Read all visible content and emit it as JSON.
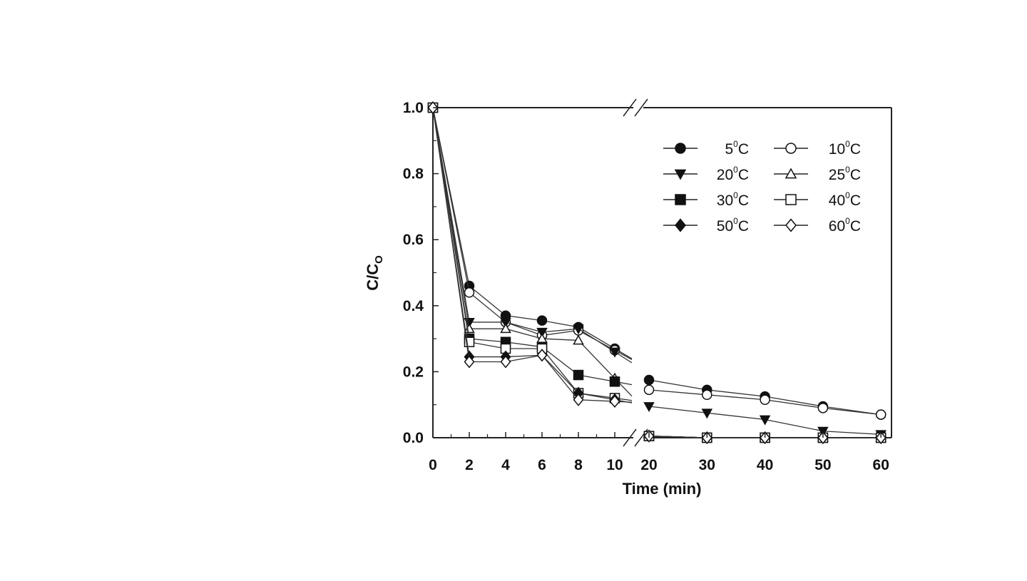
{
  "chart_data": {
    "type": "line",
    "title": "",
    "xlabel": "Time (min)",
    "ylabel": "C/C",
    "ylabel_subscript": "O",
    "ylim": [
      0,
      1.0
    ],
    "y_ticks": [
      "0.0",
      "0.2",
      "0.4",
      "0.6",
      "0.8",
      "1.0"
    ],
    "x_ticks": [
      "0",
      "2",
      "4",
      "6",
      "8",
      "10",
      "20",
      "30",
      "40",
      "50",
      "60"
    ],
    "x_axis_break": "between 10 and 20",
    "grid": false,
    "legend_position": "top-right",
    "series": [
      {
        "name": "5",
        "unit": "C",
        "marker": "circle",
        "filled": true,
        "x": [
          0,
          2,
          4,
          6,
          8,
          10,
          20,
          30,
          40,
          50,
          60
        ],
        "y": [
          1.0,
          0.46,
          0.37,
          0.355,
          0.335,
          0.27,
          0.175,
          0.145,
          0.125,
          0.095,
          0.07
        ]
      },
      {
        "name": "10",
        "unit": "C",
        "marker": "circle",
        "filled": false,
        "x": [
          0,
          2,
          4,
          6,
          8,
          10,
          20,
          30,
          40,
          50,
          60
        ],
        "y": [
          1.0,
          0.44,
          0.35,
          0.31,
          0.325,
          0.265,
          0.145,
          0.13,
          0.115,
          0.09,
          0.07
        ]
      },
      {
        "name": "20",
        "unit": "C",
        "marker": "triangle-down",
        "filled": true,
        "x": [
          0,
          2,
          4,
          6,
          8,
          10,
          20,
          30,
          40,
          50,
          60
        ],
        "y": [
          1.0,
          0.35,
          0.35,
          0.32,
          0.33,
          0.26,
          0.095,
          0.075,
          0.055,
          0.02,
          0.01
        ]
      },
      {
        "name": "25",
        "unit": "C",
        "marker": "triangle-up",
        "filled": false,
        "x": [
          0,
          2,
          4,
          6,
          8,
          10,
          20,
          30,
          40,
          50,
          60
        ],
        "y": [
          1.0,
          0.33,
          0.33,
          0.3,
          0.295,
          0.18,
          0.005,
          0.0,
          0.0,
          0.0,
          0.0
        ]
      },
      {
        "name": "30",
        "unit": "C",
        "marker": "square",
        "filled": true,
        "x": [
          0,
          2,
          4,
          6,
          8,
          10,
          20,
          30,
          40,
          50,
          60
        ],
        "y": [
          1.0,
          0.3,
          0.29,
          0.275,
          0.19,
          0.17,
          0.005,
          0.0,
          0.0,
          0.0,
          0.0
        ]
      },
      {
        "name": "40",
        "unit": "C",
        "marker": "square",
        "filled": false,
        "x": [
          0,
          2,
          4,
          6,
          8,
          10,
          20,
          30,
          40,
          50,
          60
        ],
        "y": [
          1.0,
          0.29,
          0.27,
          0.27,
          0.135,
          0.12,
          0.005,
          0.0,
          0.0,
          0.0,
          0.0
        ]
      },
      {
        "name": "50",
        "unit": "C",
        "marker": "diamond",
        "filled": true,
        "x": [
          0,
          2,
          4,
          6,
          8,
          10,
          20,
          30,
          40,
          50,
          60
        ],
        "y": [
          1.0,
          0.245,
          0.245,
          0.25,
          0.135,
          0.115,
          0.005,
          0.0,
          0.0,
          0.0,
          0.0
        ]
      },
      {
        "name": "60",
        "unit": "C",
        "marker": "diamond",
        "filled": false,
        "x": [
          0,
          2,
          4,
          6,
          8,
          10,
          20,
          30,
          40,
          50,
          60
        ],
        "y": [
          1.0,
          0.23,
          0.23,
          0.25,
          0.115,
          0.11,
          0.005,
          0.0,
          0.0,
          0.0,
          0.0
        ]
      }
    ]
  }
}
